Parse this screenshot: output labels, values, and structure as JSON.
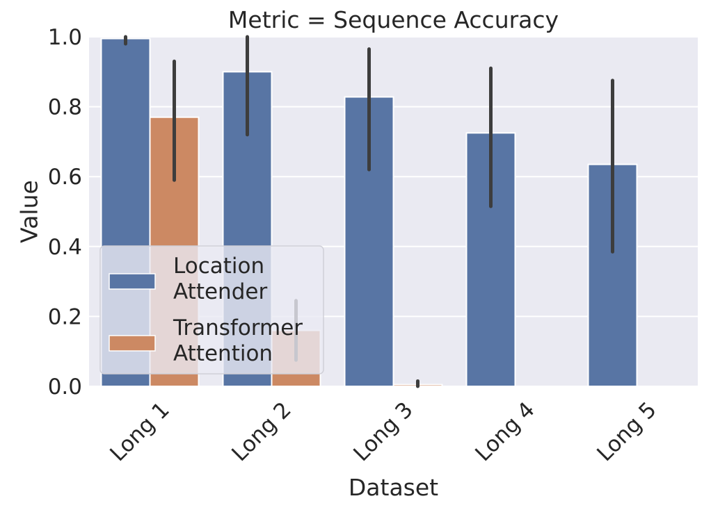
{
  "chart_data": {
    "type": "bar",
    "title": "Metric = Sequence Accuracy",
    "xlabel": "Dataset",
    "ylabel": "Value",
    "ylim": [
      0,
      1.0
    ],
    "yticks": [
      "0.0",
      "0.2",
      "0.4",
      "0.6",
      "0.8",
      "1.0"
    ],
    "categories": [
      "Long 1",
      "Long 2",
      "Long 3",
      "Long 4",
      "Long 5"
    ],
    "grid": true,
    "legend_position": "lower-left",
    "series": [
      {
        "name": "Location Attender",
        "legend_lines": [
          "Location",
          "Attender"
        ],
        "color": "#5875a4",
        "values": [
          0.995,
          0.9,
          0.828,
          0.725,
          0.635
        ],
        "ci": [
          [
            0.98,
            1.0
          ],
          [
            0.72,
            1.0
          ],
          [
            0.62,
            0.965
          ],
          [
            0.515,
            0.91
          ],
          [
            0.385,
            0.875
          ]
        ]
      },
      {
        "name": "Transformer Attention",
        "legend_lines": [
          "Transformer",
          "Attention"
        ],
        "color": "#cc8963",
        "values": [
          0.77,
          0.16,
          0.005,
          0.0,
          0.0
        ],
        "ci": [
          [
            0.59,
            0.93
          ],
          [
            0.075,
            0.245
          ],
          [
            0.0,
            0.015
          ],
          null,
          null
        ]
      }
    ],
    "colors": {
      "background": "#eaeaf2",
      "grid": "#ffffff",
      "errorbar": "#3d3d3d"
    }
  }
}
